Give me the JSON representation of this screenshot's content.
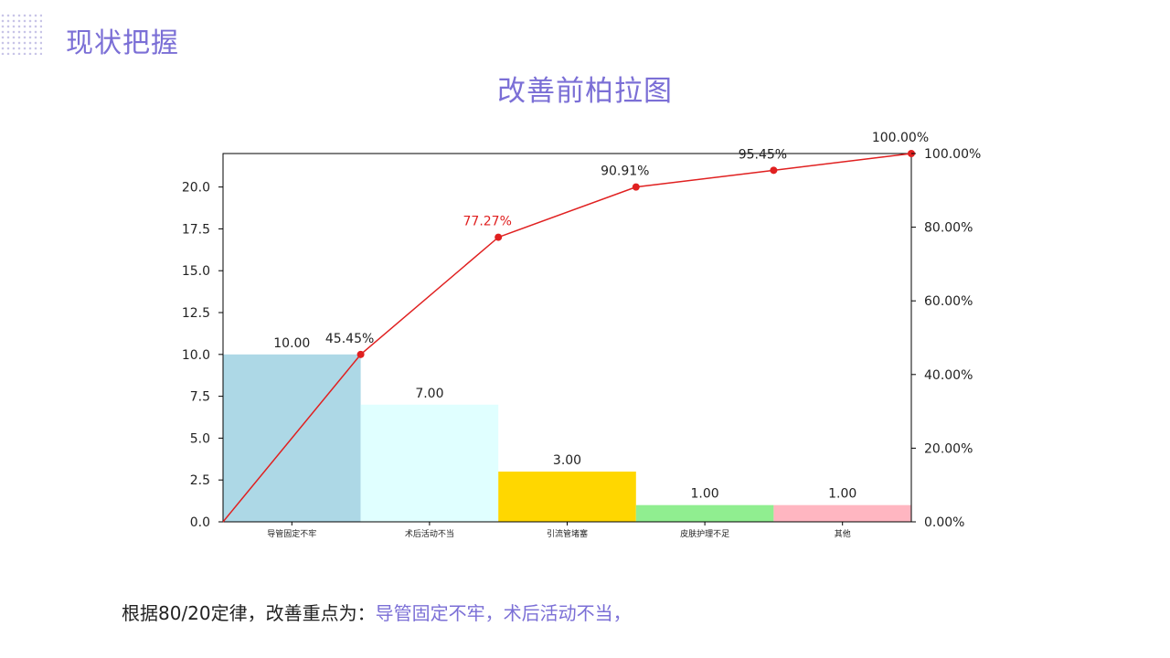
{
  "header": {
    "title": "现状把握"
  },
  "chart_data": {
    "type": "bar",
    "title": "改善前柏拉图",
    "categories": [
      "导管固定不牢",
      "术后活动不当",
      "引流管堵塞",
      "皮肤护理不足",
      "其他"
    ],
    "values": [
      10,
      7,
      3,
      1,
      1
    ],
    "value_labels": [
      "10.00",
      "7.00",
      "3.00",
      "1.00",
      "1.00"
    ],
    "bar_colors": [
      "#add8e6",
      "#e0ffff",
      "#ffd700",
      "#90ee90",
      "#ffb6c1"
    ],
    "cumulative_percent": [
      0,
      45.45,
      77.27,
      90.91,
      95.45,
      100.0
    ],
    "cumulative_labels": [
      "45.45%",
      "77.27%",
      "90.91%",
      "95.45%",
      "100.00%"
    ],
    "cumulative_label_colors": [
      "#222222",
      "#e02020",
      "#222222",
      "#222222",
      "#222222"
    ],
    "line_color": "#e02020",
    "ylim": [
      0,
      22
    ],
    "yticks": [
      "0.0",
      "2.5",
      "5.0",
      "7.5",
      "10.0",
      "12.5",
      "15.0",
      "17.5",
      "20.0"
    ],
    "y2lim": [
      0,
      100
    ],
    "y2ticks": [
      "0.00%",
      "20.00%",
      "40.00%",
      "60.00%",
      "80.00%",
      "100.00%"
    ],
    "grid": false,
    "xlabel": "",
    "ylabel": ""
  },
  "conclusion": {
    "prefix": "根据80/20定律，改善重点为：",
    "highlight": "导管固定不牢，术后活动不当，"
  }
}
